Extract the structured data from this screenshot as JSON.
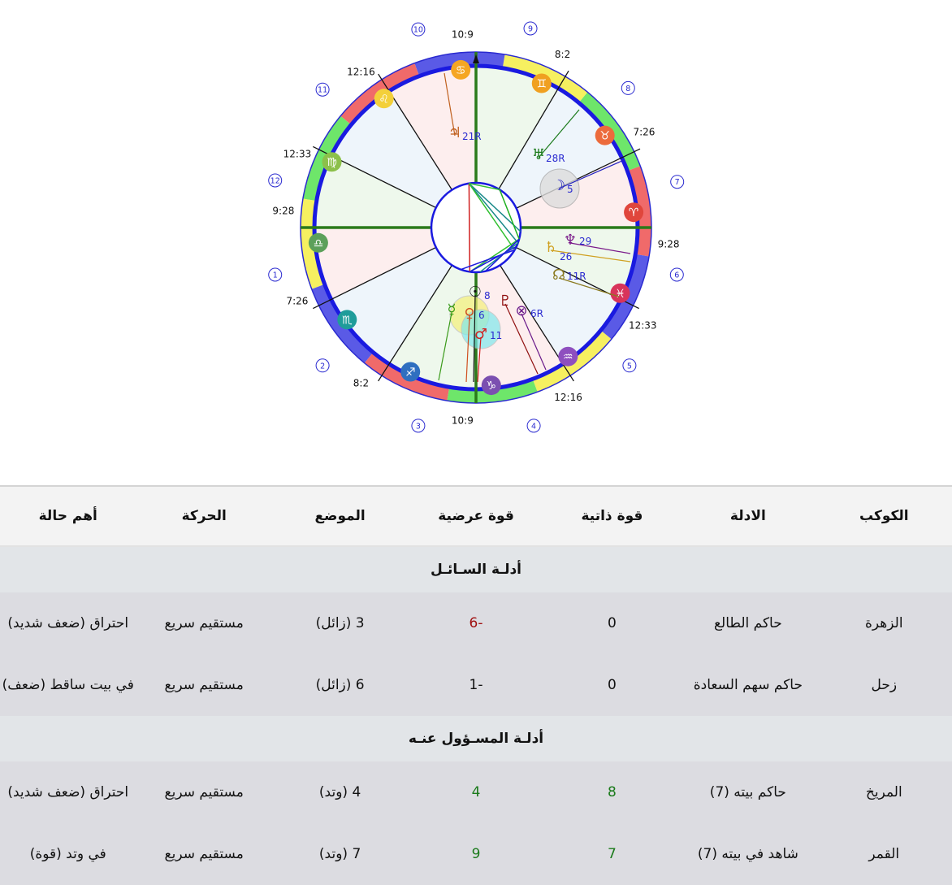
{
  "chart": {
    "signs": [
      {
        "name": "aries",
        "glyph": "♈",
        "color": "#e0463c",
        "element_color": "#f06a6a"
      },
      {
        "name": "taurus",
        "glyph": "♉",
        "color": "#ec6b3c",
        "element_color": "#6ee66a"
      },
      {
        "name": "gemini",
        "glyph": "♊",
        "color": "#f0a020",
        "element_color": "#f6f060"
      },
      {
        "name": "cancer",
        "glyph": "♋",
        "color": "#f5a623",
        "element_color": "#5a5ae6"
      },
      {
        "name": "leo",
        "glyph": "♌",
        "color": "#f3d03a",
        "element_color": "#f06a6a"
      },
      {
        "name": "virgo",
        "glyph": "♍",
        "color": "#8cc04a",
        "element_color": "#6ee66a"
      },
      {
        "name": "libra",
        "glyph": "♎",
        "color": "#5ca05a",
        "element_color": "#f6f060"
      },
      {
        "name": "scorpio",
        "glyph": "♏",
        "color": "#1f9c9a",
        "element_color": "#5a5ae6"
      },
      {
        "name": "sagittarius",
        "glyph": "♐",
        "color": "#2f6fc0",
        "element_color": "#f06a6a"
      },
      {
        "name": "capricorn",
        "glyph": "♑",
        "color": "#7b4fb0",
        "element_color": "#6ee66a"
      },
      {
        "name": "aquarius",
        "glyph": "♒",
        "color": "#8e4fbf",
        "element_color": "#f6f060"
      },
      {
        "name": "pisces",
        "glyph": "♓",
        "color": "#d8345a",
        "element_color": "#5a5ae6"
      }
    ],
    "ascendant_longitude": 189.47,
    "cusps": [
      {
        "house": "1",
        "label": "9:28"
      },
      {
        "house": "2",
        "label": "7:26"
      },
      {
        "house": "3",
        "label": "8:2"
      },
      {
        "house": "4",
        "label": "10:9"
      },
      {
        "house": "5",
        "label": "12:16"
      },
      {
        "house": "6",
        "label": "12:33"
      },
      {
        "house": "7",
        "label": "9:28"
      },
      {
        "house": "8",
        "label": "7:26"
      },
      {
        "house": "9",
        "label": "8:2"
      },
      {
        "house": "10",
        "label": "10:9"
      },
      {
        "house": "11",
        "label": "12:16"
      },
      {
        "house": "12",
        "label": "12:33"
      }
    ],
    "planets": [
      {
        "name": "jupiter",
        "glyph": "♃",
        "label": "21R",
        "color": "#c0601e"
      },
      {
        "name": "uranus",
        "glyph": "♅",
        "label": "28R",
        "color": "#1a7a1a"
      },
      {
        "name": "moon",
        "glyph": "☽",
        "label": "5",
        "color": "#2020c0"
      },
      {
        "name": "saturn",
        "glyph": "♄",
        "label": "26",
        "color": "#d0a020"
      },
      {
        "name": "neptune",
        "glyph": "♆",
        "label": "29",
        "color": "#7a1a8a"
      },
      {
        "name": "north-node",
        "glyph": "☊",
        "label": "11R",
        "color": "#8a7a20"
      },
      {
        "name": "pluto",
        "glyph": "♇",
        "label": "",
        "color": "#901010"
      },
      {
        "name": "part-of-fortune",
        "glyph": "⊗",
        "label": "6R",
        "color": "#6a1a8a"
      },
      {
        "name": "mercury",
        "glyph": "☿",
        "label": "",
        "color": "#3a9a1a"
      },
      {
        "name": "sun",
        "glyph": "☉",
        "label": "8",
        "color": "#111111"
      },
      {
        "name": "venus",
        "glyph": "♀",
        "label": "6",
        "color": "#d05020"
      },
      {
        "name": "mars",
        "glyph": "♂",
        "label": "11",
        "color": "#d02020"
      }
    ]
  },
  "table": {
    "headers": [
      "الكوكب",
      "الادلة",
      "قوة ذاتية",
      "قوة عرضية",
      "الموضع",
      "الحركة",
      "أهم حالة"
    ],
    "section_querent": "أدلـة السـائـل",
    "section_quesited": "أدلـة المسـؤول عنـه",
    "querent_rows": [
      [
        "الزهرة",
        "حاكم الطالع",
        "0",
        "-6",
        "3 (زائل)",
        "مستقيم سريع",
        "احتراق (ضعف شديد)"
      ],
      [
        "زحل",
        "حاكم سهم السعادة",
        "0",
        "-1",
        "6 (زائل)",
        "مستقيم سريع",
        "في بيت ساقط (ضعف)"
      ]
    ],
    "quesited_rows": [
      [
        "المريخ",
        "حاكم بيته (7)",
        "8",
        "4",
        "4 (وتد)",
        "مستقيم سريع",
        "احتراق (ضعف شديد)"
      ],
      [
        "القمر",
        "شاهد في بيته (7)",
        "7",
        "9",
        "7 (وتد)",
        "مستقيم سريع",
        "في وتد (قوة)"
      ]
    ]
  }
}
